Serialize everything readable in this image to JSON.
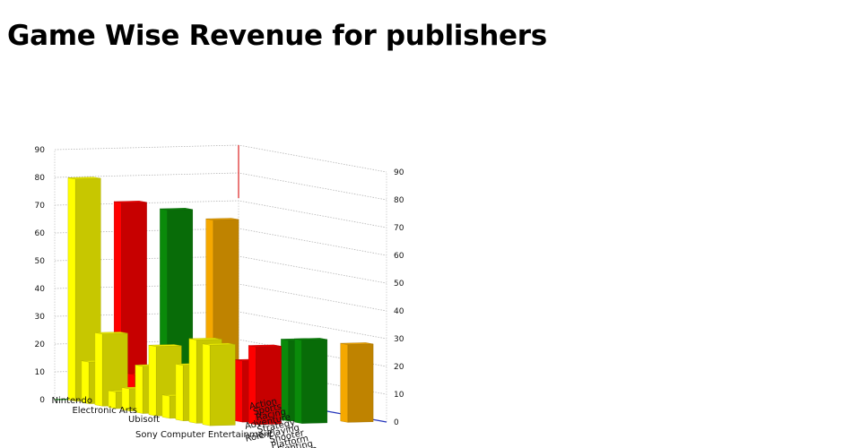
{
  "page": {
    "title": "Game Wise Revenue for publishers"
  },
  "chart_data": {
    "type": "bar",
    "title": "Game Wise Revenue for publishers",
    "xlabel": "",
    "ylabel": "",
    "zlabel": "",
    "publishers": [
      "Nintendo",
      "Electronic Arts",
      "Ubisoft",
      "Sony Computer Entertainment"
    ],
    "genres": [
      "Action",
      "Sports",
      "Racing",
      "Adventure",
      "Strategy",
      "Role-Playing",
      "Shooter",
      "Platform",
      "Fighting",
      "Simulation",
      "Misc"
    ],
    "series_colors": [
      "#f5a800",
      "#0a8a0a",
      "#ff0000",
      "#ffff00"
    ],
    "zlim": [
      0,
      90
    ],
    "z_ticks": [
      0,
      10,
      20,
      30,
      40,
      50,
      60,
      70,
      80,
      90
    ],
    "grid": true,
    "series": [
      {
        "name": "Nintendo",
        "values": [
          64,
          0,
          0,
          0,
          0,
          0,
          0,
          0,
          0,
          0,
          28
        ]
      },
      {
        "name": "Electronic Arts",
        "values": [
          68,
          0,
          0,
          0,
          0,
          0,
          0,
          0,
          0,
          29,
          30
        ]
      },
      {
        "name": "Ubisoft",
        "values": [
          71,
          10,
          0,
          0,
          0,
          5,
          9,
          0,
          0,
          22,
          28
        ]
      },
      {
        "name": "Sony Computer Entertainment",
        "values": [
          80,
          15,
          26,
          6,
          8,
          17,
          25,
          8,
          20,
          30,
          29
        ]
      }
    ]
  }
}
